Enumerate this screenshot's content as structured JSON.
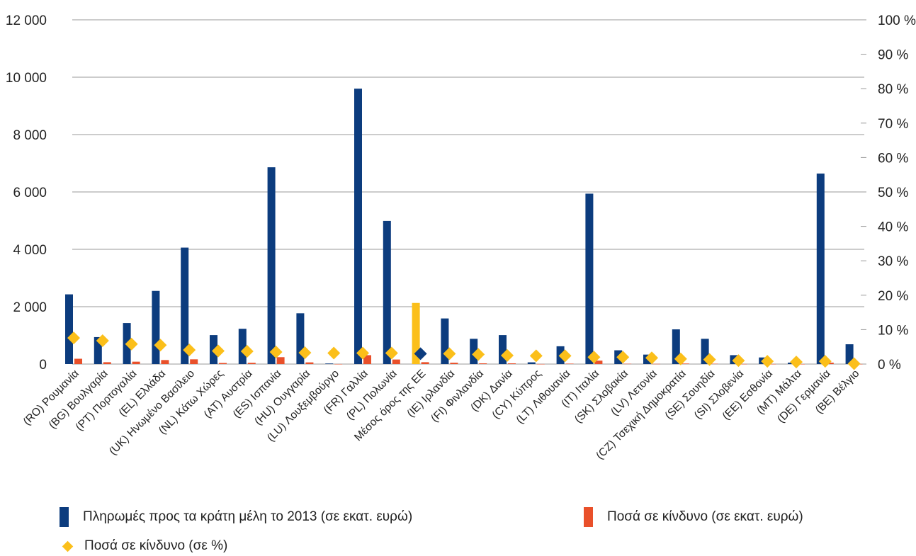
{
  "chart_data": {
    "type": "bar",
    "categories": [
      "(RO) Ρουμανία",
      "(BG) Βουλγαρία",
      "(PT) Πορτογαλία",
      "(EL) Ελλάδα",
      "(UK) Ηνωμένο Βασίλειο",
      "(NL) Κάτω Χώρες",
      "(AT) Αυστρία",
      "(ES) Ισπανία",
      "(HU) Ουγγαρία",
      "(LU) Λουξεμβούργο",
      "(FR) Γαλλία",
      "(PL) Πολωνία",
      "Μέσος όρος της ΕΕ",
      "(IE) Ιρλανδία",
      "(FI) Φινλανδία",
      "(DK) Δανία",
      "(CY) Κύπρος",
      "(LT) Λιθουανία",
      "(IT) Ιταλία",
      "(SK) Σλοβακία",
      "(LV) Λετονία",
      "(CZ) Τσεχική Δημοκρατία",
      "(SE) Σουηδία",
      "(SI) Σλοβενία",
      "(EE) Εσθονία",
      "(MT) Μάλτα",
      "(DE) Γερμανία",
      "(BE) Βέλγιο"
    ],
    "series": [
      {
        "name": "Πληρωμές προς τα κράτη μέλη το 2013 (σε εκατ. ευρώ)",
        "axis": "left",
        "color": "#0c3c7e",
        "values": [
          2430,
          940,
          1430,
          2550,
          4060,
          1010,
          1230,
          6860,
          1770,
          20,
          9600,
          4990,
          2130,
          1590,
          880,
          1010,
          60,
          620,
          5940,
          480,
          330,
          1210,
          880,
          310,
          230,
          50,
          6640,
          690
        ]
      },
      {
        "name": "Ποσά σε κίνδυνο (σε εκατ. ευρώ)",
        "axis": "left",
        "color": "#e9502a",
        "values": [
          185,
          64,
          83,
          140,
          165,
          38,
          44,
          240,
          58,
          1,
          310,
          158,
          65,
          47,
          25,
          25,
          2,
          15,
          120,
          10,
          6,
          18,
          11,
          3,
          2,
          0.3,
          50,
          2
        ]
      },
      {
        "name": "Ποσά σε κίνδυνο (σε %)",
        "axis": "right",
        "color": "#fbbf1a",
        "values": [
          7.6,
          6.8,
          5.8,
          5.5,
          4.1,
          3.8,
          3.7,
          3.5,
          3.3,
          3.2,
          3.2,
          3.2,
          3.0,
          3.0,
          2.8,
          2.5,
          2.4,
          2.4,
          2.0,
          2.0,
          1.8,
          1.5,
          1.3,
          1.0,
          0.8,
          0.6,
          0.8,
          0.1
        ]
      }
    ],
    "eu_average_index": 12,
    "eu_average_bar_color": "#fbbf1a",
    "eu_average_marker_color": "#0c3c7e",
    "y_left": {
      "min": 0,
      "max": 12000,
      "step": 2000,
      "labels": [
        "0",
        "2 000",
        "4 000",
        "6 000",
        "8 000",
        "10 000",
        "12 000"
      ]
    },
    "y_right": {
      "min": 0,
      "max": 100,
      "step": 10,
      "labels": [
        "0 %",
        "10 %",
        "20 %",
        "30 %",
        "40 %",
        "50 %",
        "60 %",
        "70 %",
        "80 %",
        "90 %",
        "100 %"
      ]
    },
    "grid": true,
    "legend_position": "bottom"
  },
  "legend": {
    "payments": "Πληρωμές προς τα κράτη μέλη το 2013 (σε εκατ. ευρώ)",
    "risk_eur": "Ποσά σε κίνδυνο (σε εκατ. ευρώ)",
    "risk_pct": "Ποσά σε κίνδυνο (σε %)"
  }
}
